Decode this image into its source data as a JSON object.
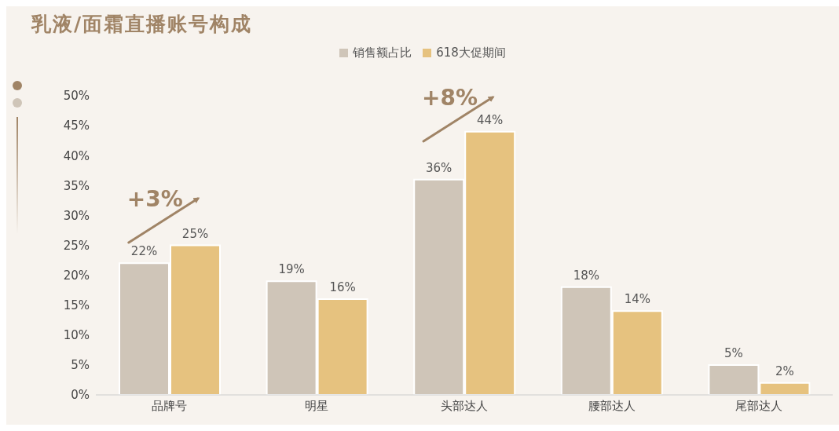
{
  "chart_data": {
    "type": "bar",
    "title": "乳液/面霜直播账号构成",
    "categories": [
      "品牌号",
      "明星",
      "头部达人",
      "腰部达人",
      "尾部达人"
    ],
    "series": [
      {
        "name": "销售额占比",
        "color": "#cfc5b8",
        "values": [
          22,
          19,
          36,
          18,
          5
        ],
        "value_labels": [
          "22%",
          "19%",
          "36%",
          "18%",
          "5%"
        ]
      },
      {
        "name": "618大促期间",
        "color": "#e6c27f",
        "values": [
          25,
          16,
          44,
          14,
          2
        ],
        "value_labels": [
          "25%",
          "16%",
          "44%",
          "14%",
          "2%"
        ]
      }
    ],
    "ylim": [
      0,
      50
    ],
    "yticks": [
      {
        "value": 0,
        "label": "0%"
      },
      {
        "value": 5,
        "label": "5%"
      },
      {
        "value": 10,
        "label": "10%"
      },
      {
        "value": 15,
        "label": "15%"
      },
      {
        "value": 20,
        "label": "20%"
      },
      {
        "value": 25,
        "label": "25%"
      },
      {
        "value": 30,
        "label": "30%"
      },
      {
        "value": 35,
        "label": "35%"
      },
      {
        "value": 40,
        "label": "40%"
      },
      {
        "value": 45,
        "label": "45%"
      },
      {
        "value": 50,
        "label": "50%"
      }
    ],
    "annotations": [
      "+3%",
      "+8%"
    ],
    "grid": false,
    "legend": "top"
  }
}
